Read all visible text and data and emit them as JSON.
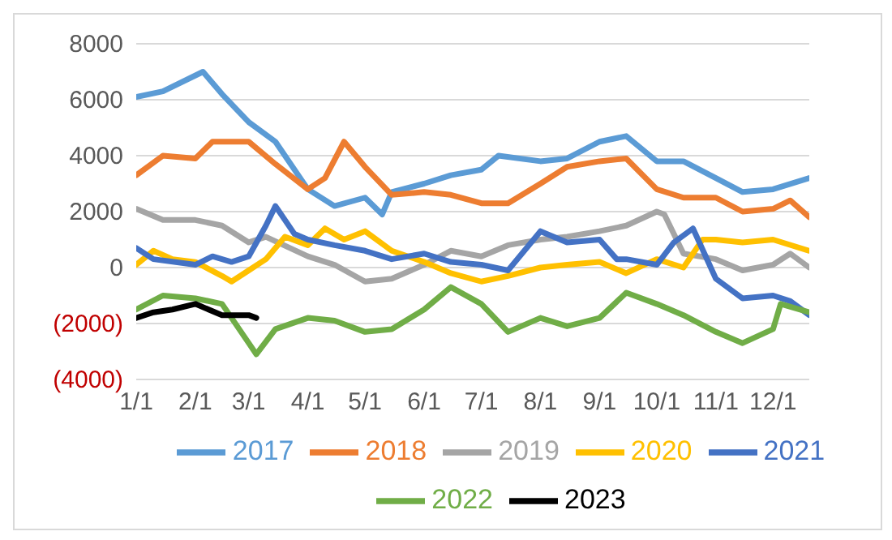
{
  "chart_data": {
    "type": "line",
    "xlim": [
      "--01-01",
      "--12-20"
    ],
    "xticks": [
      {
        "value": "--01-01",
        "label": "1/1"
      },
      {
        "value": "--02-01",
        "label": "2/1"
      },
      {
        "value": "--03-01",
        "label": "3/1"
      },
      {
        "value": "--04-01",
        "label": "4/1"
      },
      {
        "value": "--05-01",
        "label": "5/1"
      },
      {
        "value": "--06-01",
        "label": "6/1"
      },
      {
        "value": "--07-01",
        "label": "7/1"
      },
      {
        "value": "--08-01",
        "label": "8/1"
      },
      {
        "value": "--09-01",
        "label": "9/1"
      },
      {
        "value": "--10-01",
        "label": "10/1"
      },
      {
        "value": "--11-01",
        "label": "11/1"
      },
      {
        "value": "--12-01",
        "label": "12/1"
      }
    ],
    "ylim": [
      -4000,
      8000
    ],
    "yticks": [
      {
        "value": -4000,
        "label": "(4000)"
      },
      {
        "value": -2000,
        "label": "(2000)"
      },
      0,
      2000,
      4000,
      6000,
      8000
    ],
    "grid": "y",
    "legend": "bottom",
    "marker": "none",
    "line_style": "solid",
    "series": [
      {
        "name": "2017",
        "color": "#5b9bd5",
        "x": [
          "--01-01",
          "--01-15",
          "--02-05",
          "--02-15",
          "--03-01",
          "--03-15",
          "--04-01",
          "--04-15",
          "--05-01",
          "--05-10",
          "--05-15",
          "--06-01",
          "--06-15",
          "--07-01",
          "--07-10",
          "--08-01",
          "--08-15",
          "--09-01",
          "--09-15",
          "--10-01",
          "--10-15",
          "--11-01",
          "--11-15",
          "--12-01",
          "--12-20"
        ],
        "values": [
          6100,
          6300,
          7000,
          6200,
          5200,
          4500,
          2800,
          2200,
          2500,
          1900,
          2700,
          3000,
          3300,
          3500,
          4000,
          3800,
          3900,
          4500,
          4700,
          3800,
          3800,
          3200,
          2700,
          2800,
          3200
        ]
      },
      {
        "name": "2018",
        "color": "#ed7d31",
        "x": [
          "--01-01",
          "--01-15",
          "--02-01",
          "--02-10",
          "--03-01",
          "--03-15",
          "--04-01",
          "--04-10",
          "--04-20",
          "--05-01",
          "--05-15",
          "--06-01",
          "--06-15",
          "--07-01",
          "--07-15",
          "--08-01",
          "--08-15",
          "--09-01",
          "--09-15",
          "--10-01",
          "--10-15",
          "--11-01",
          "--11-15",
          "--12-01",
          "--12-10",
          "--12-20"
        ],
        "values": [
          3300,
          4000,
          3900,
          4500,
          4500,
          3700,
          2800,
          3200,
          4500,
          3600,
          2600,
          2700,
          2600,
          2300,
          2300,
          3000,
          3600,
          3800,
          3900,
          2800,
          2500,
          2500,
          2000,
          2100,
          2400,
          1800
        ]
      },
      {
        "name": "2019",
        "color": "#a5a5a5",
        "x": [
          "--01-01",
          "--01-15",
          "--02-01",
          "--02-15",
          "--03-01",
          "--03-10",
          "--04-01",
          "--04-15",
          "--05-01",
          "--05-15",
          "--06-01",
          "--06-15",
          "--07-01",
          "--07-15",
          "--08-01",
          "--08-15",
          "--09-01",
          "--09-15",
          "--10-01",
          "--10-05",
          "--10-15",
          "--11-01",
          "--11-15",
          "--12-01",
          "--12-10",
          "--12-20"
        ],
        "values": [
          2100,
          1700,
          1700,
          1500,
          900,
          1100,
          400,
          100,
          -500,
          -400,
          100,
          600,
          400,
          800,
          1000,
          1100,
          1300,
          1500,
          2000,
          1900,
          500,
          300,
          -100,
          100,
          500,
          0
        ]
      },
      {
        "name": "2020",
        "color": "#ffc000",
        "x": [
          "--01-01",
          "--01-10",
          "--01-20",
          "--02-01",
          "--02-15",
          "--02-20",
          "--03-01",
          "--03-10",
          "--03-20",
          "--04-01",
          "--04-10",
          "--04-20",
          "--05-01",
          "--05-15",
          "--06-01",
          "--06-15",
          "--07-01",
          "--07-15",
          "--08-01",
          "--08-15",
          "--09-01",
          "--09-15",
          "--10-01",
          "--10-15",
          "--10-25",
          "--11-01",
          "--11-15",
          "--12-01",
          "--12-20"
        ],
        "values": [
          100,
          600,
          300,
          200,
          -300,
          -500,
          -100,
          300,
          1100,
          800,
          1400,
          1000,
          1300,
          600,
          200,
          -200,
          -500,
          -300,
          0,
          100,
          200,
          -200,
          300,
          0,
          1000,
          1000,
          900,
          1000,
          600
        ]
      },
      {
        "name": "2021",
        "color": "#4472c4",
        "x": [
          "--01-01",
          "--01-10",
          "--02-01",
          "--02-10",
          "--02-20",
          "--03-01",
          "--03-10",
          "--03-15",
          "--03-25",
          "--04-01",
          "--04-15",
          "--05-01",
          "--05-15",
          "--06-01",
          "--06-15",
          "--07-01",
          "--07-15",
          "--08-01",
          "--08-15",
          "--09-01",
          "--09-10",
          "--09-15",
          "--10-01",
          "--10-10",
          "--10-20",
          "--11-01",
          "--11-15",
          "--12-01",
          "--12-10",
          "--12-20"
        ],
        "values": [
          700,
          300,
          100,
          400,
          200,
          400,
          1500,
          2200,
          1200,
          1000,
          800,
          600,
          300,
          500,
          200,
          100,
          -100,
          1300,
          900,
          1000,
          300,
          300,
          100,
          900,
          1400,
          -400,
          -1100,
          -1000,
          -1200,
          -1700
        ]
      },
      {
        "name": "2022",
        "color": "#70ad47",
        "x": [
          "--01-01",
          "--01-15",
          "--02-01",
          "--02-15",
          "--03-01",
          "--03-05",
          "--03-15",
          "--04-01",
          "--04-15",
          "--05-01",
          "--05-15",
          "--06-01",
          "--06-15",
          "--07-01",
          "--07-15",
          "--08-01",
          "--08-15",
          "--09-01",
          "--09-15",
          "--10-01",
          "--10-15",
          "--11-01",
          "--11-15",
          "--12-01",
          "--12-05",
          "--12-20"
        ],
        "values": [
          -1500,
          -1000,
          -1100,
          -1300,
          -2700,
          -3100,
          -2200,
          -1800,
          -1900,
          -2300,
          -2200,
          -1500,
          -700,
          -1300,
          -2300,
          -1800,
          -2100,
          -1800,
          -900,
          -1300,
          -1700,
          -2300,
          -2700,
          -2200,
          -1300,
          -1600
        ]
      },
      {
        "name": "2023",
        "color": "#000000",
        "x": [
          "--01-01",
          "--01-10",
          "--01-20",
          "--02-01",
          "--02-15",
          "--03-01",
          "--03-05"
        ],
        "values": [
          -1800,
          -1600,
          -1500,
          -1300,
          -1700,
          -1700,
          -1800
        ]
      }
    ]
  }
}
